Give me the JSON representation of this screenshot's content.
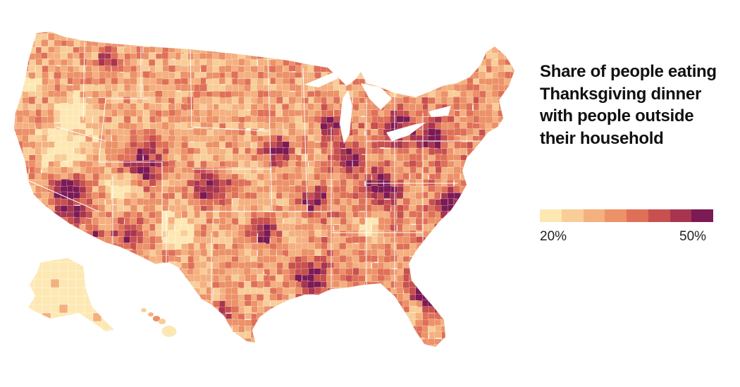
{
  "legend": {
    "title": "Share of people eating Thanksgiving dinner with people outside their household",
    "min_label": "20%",
    "max_label": "50%",
    "colors": [
      "#fde8b3",
      "#f9cd98",
      "#f4b07f",
      "#ec9168",
      "#df7058",
      "#c8504f",
      "#a8354f",
      "#7c1a55"
    ]
  },
  "map": {
    "subject": "county-level share of people eating Thanksgiving dinner with people outside their household",
    "background": "#ffffff",
    "border_color": "#ffffff",
    "scale_min": 0.2,
    "scale_max": 0.5
  }
}
